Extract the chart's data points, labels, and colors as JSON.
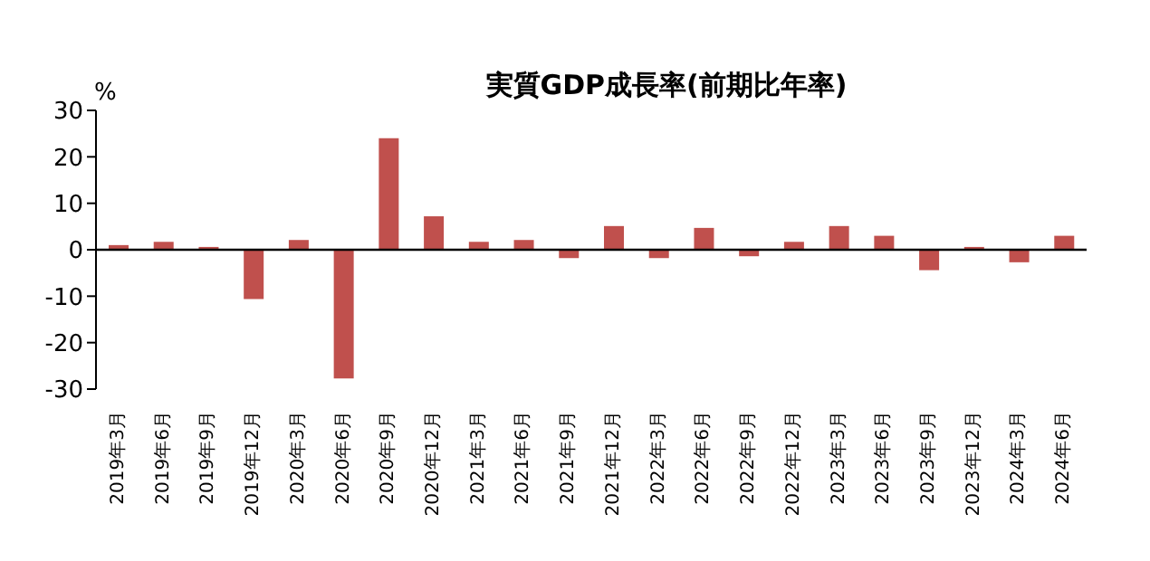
{
  "chart_data": {
    "type": "bar",
    "title": "実質GDP成長率(前期比年率)",
    "ylabel": "%",
    "categories": [
      "2019年3月",
      "2019年6月",
      "2019年9月",
      "2019年12月",
      "2020年3月",
      "2020年6月",
      "2020年9月",
      "2020年12月",
      "2021年3月",
      "2021年6月",
      "2021年9月",
      "2021年12月",
      "2022年3月",
      "2022年6月",
      "2022年9月",
      "2022年12月",
      "2023年3月",
      "2023年6月",
      "2023年9月",
      "2023年12月",
      "2024年3月",
      "2024年6月"
    ],
    "values": [
      1.0,
      1.7,
      0.6,
      -10.6,
      2.1,
      -27.7,
      24.0,
      7.2,
      1.7,
      2.1,
      -1.8,
      5.1,
      -1.8,
      4.7,
      -1.4,
      1.7,
      5.1,
      3.0,
      -4.4,
      0.6,
      -2.7,
      3.0
    ],
    "color": "#c0504d",
    "ylim": [
      -30,
      30
    ],
    "yticks": [
      -30,
      -20,
      -10,
      0,
      10,
      20,
      30
    ],
    "legend": false
  }
}
